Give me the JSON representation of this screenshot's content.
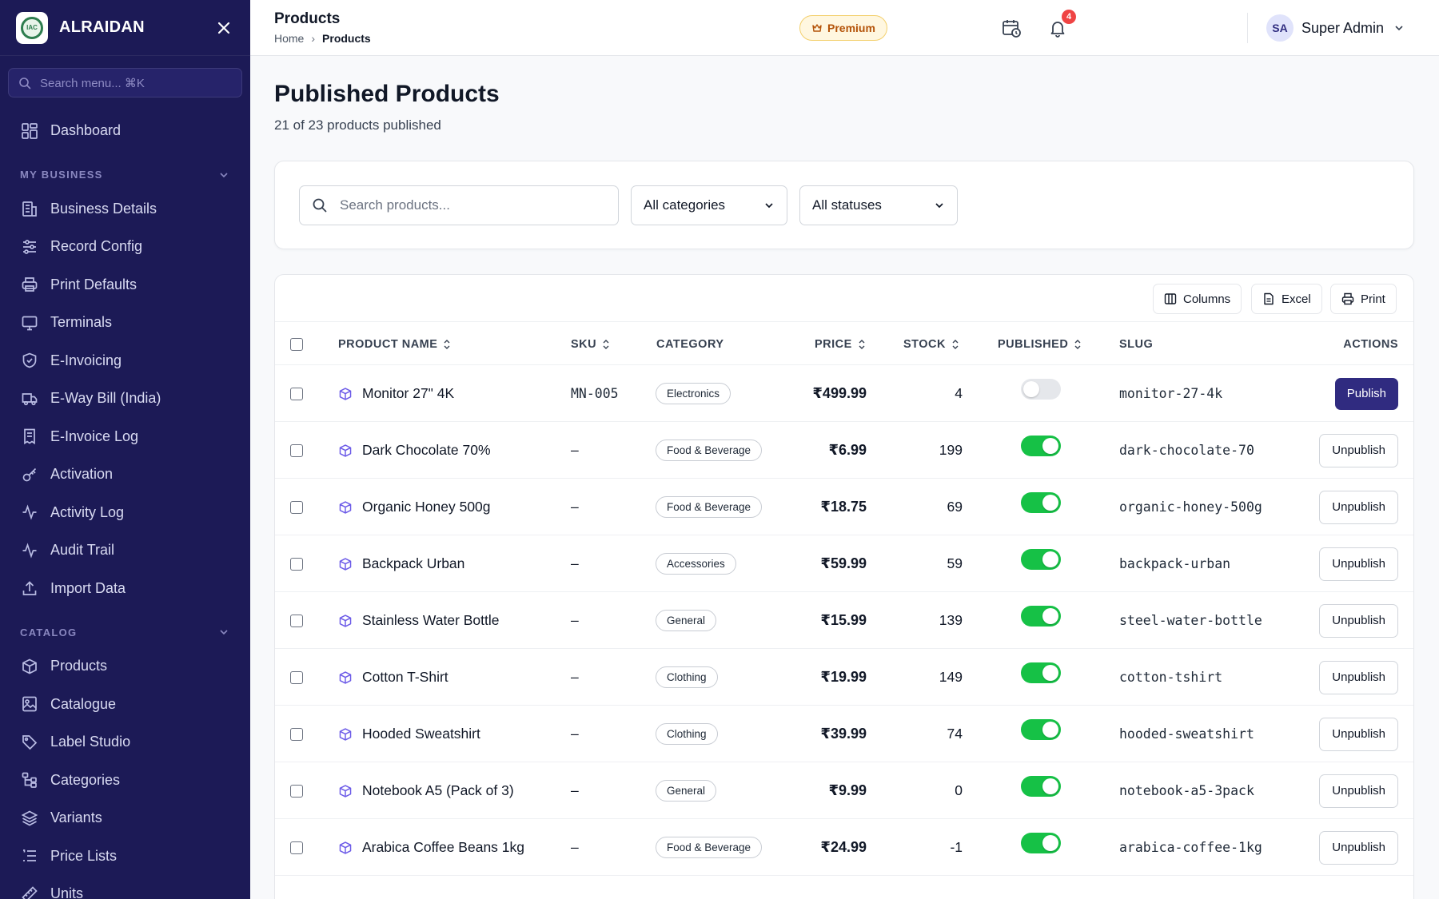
{
  "sidebar": {
    "brand": "ALRAIDAN",
    "logo_text": "IAC",
    "search_placeholder": "Search menu... ⌘K",
    "dashboard": "Dashboard",
    "section_business": "MY BUSINESS",
    "business_items": [
      {
        "label": "Business Details",
        "icon": "building-icon"
      },
      {
        "label": "Record Config",
        "icon": "sliders-icon"
      },
      {
        "label": "Print Defaults",
        "icon": "printer-icon"
      },
      {
        "label": "Terminals",
        "icon": "monitor-icon"
      },
      {
        "label": "E-Invoicing",
        "icon": "shield-check-icon"
      },
      {
        "label": "E-Way Bill (India)",
        "icon": "truck-icon"
      },
      {
        "label": "E-Invoice Log",
        "icon": "receipt-icon"
      },
      {
        "label": "Activation",
        "icon": "key-icon"
      },
      {
        "label": "Activity Log",
        "icon": "activity-icon"
      },
      {
        "label": "Audit Trail",
        "icon": "activity-icon"
      },
      {
        "label": "Import Data",
        "icon": "upload-icon"
      }
    ],
    "section_catalog": "CATALOG",
    "catalog_items": [
      {
        "label": "Products",
        "icon": "box-icon"
      },
      {
        "label": "Catalogue",
        "icon": "image-icon"
      },
      {
        "label": "Label Studio",
        "icon": "tag-icon"
      },
      {
        "label": "Categories",
        "icon": "tree-icon"
      },
      {
        "label": "Variants",
        "icon": "layers-icon"
      },
      {
        "label": "Price Lists",
        "icon": "list-icon"
      },
      {
        "label": "Units",
        "icon": "ruler-icon"
      }
    ]
  },
  "topbar": {
    "title": "Products",
    "crumb_home": "Home",
    "crumb_sep": "›",
    "crumb_current": "Products",
    "premium": "Premium",
    "notifications": "4",
    "avatar": "SA",
    "user_name": "Super Admin"
  },
  "page": {
    "title": "Published Products",
    "subtitle": "21 of 23 products published"
  },
  "filters": {
    "search_placeholder": "Search products...",
    "category": "All categories",
    "status": "All statuses"
  },
  "toolbar": {
    "columns": "Columns",
    "excel": "Excel",
    "print": "Print"
  },
  "table": {
    "headers": {
      "name": "PRODUCT NAME",
      "sku": "SKU",
      "category": "CATEGORY",
      "price": "PRICE",
      "stock": "STOCK",
      "published": "PUBLISHED",
      "slug": "SLUG",
      "actions": "ACTIONS"
    },
    "rows": [
      {
        "name": "Monitor 27\" 4K",
        "sku": "MN-005",
        "category": "Electronics",
        "price": "₹499.99",
        "stock": "4",
        "published": false,
        "slug": "monitor-27-4k",
        "action": "Publish"
      },
      {
        "name": "Dark Chocolate 70%",
        "sku": "–",
        "category": "Food & Beverage",
        "price": "₹6.99",
        "stock": "199",
        "published": true,
        "slug": "dark-chocolate-70",
        "action": "Unpublish"
      },
      {
        "name": "Organic Honey 500g",
        "sku": "–",
        "category": "Food & Beverage",
        "price": "₹18.75",
        "stock": "69",
        "published": true,
        "slug": "organic-honey-500g",
        "action": "Unpublish"
      },
      {
        "name": "Backpack Urban",
        "sku": "–",
        "category": "Accessories",
        "price": "₹59.99",
        "stock": "59",
        "published": true,
        "slug": "backpack-urban",
        "action": "Unpublish"
      },
      {
        "name": "Stainless Water Bottle",
        "sku": "–",
        "category": "General",
        "price": "₹15.99",
        "stock": "139",
        "published": true,
        "slug": "steel-water-bottle",
        "action": "Unpublish"
      },
      {
        "name": "Cotton T-Shirt",
        "sku": "–",
        "category": "Clothing",
        "price": "₹19.99",
        "stock": "149",
        "published": true,
        "slug": "cotton-tshirt",
        "action": "Unpublish"
      },
      {
        "name": "Hooded Sweatshirt",
        "sku": "–",
        "category": "Clothing",
        "price": "₹39.99",
        "stock": "74",
        "published": true,
        "slug": "hooded-sweatshirt",
        "action": "Unpublish"
      },
      {
        "name": "Notebook A5 (Pack of 3)",
        "sku": "–",
        "category": "General",
        "price": "₹9.99",
        "stock": "0",
        "published": true,
        "slug": "notebook-a5-3pack",
        "action": "Unpublish"
      },
      {
        "name": "Arabica Coffee Beans 1kg",
        "sku": "–",
        "category": "Food & Beverage",
        "price": "₹24.99",
        "stock": "-1",
        "published": true,
        "slug": "arabica-coffee-1kg",
        "action": "Unpublish"
      }
    ]
  }
}
